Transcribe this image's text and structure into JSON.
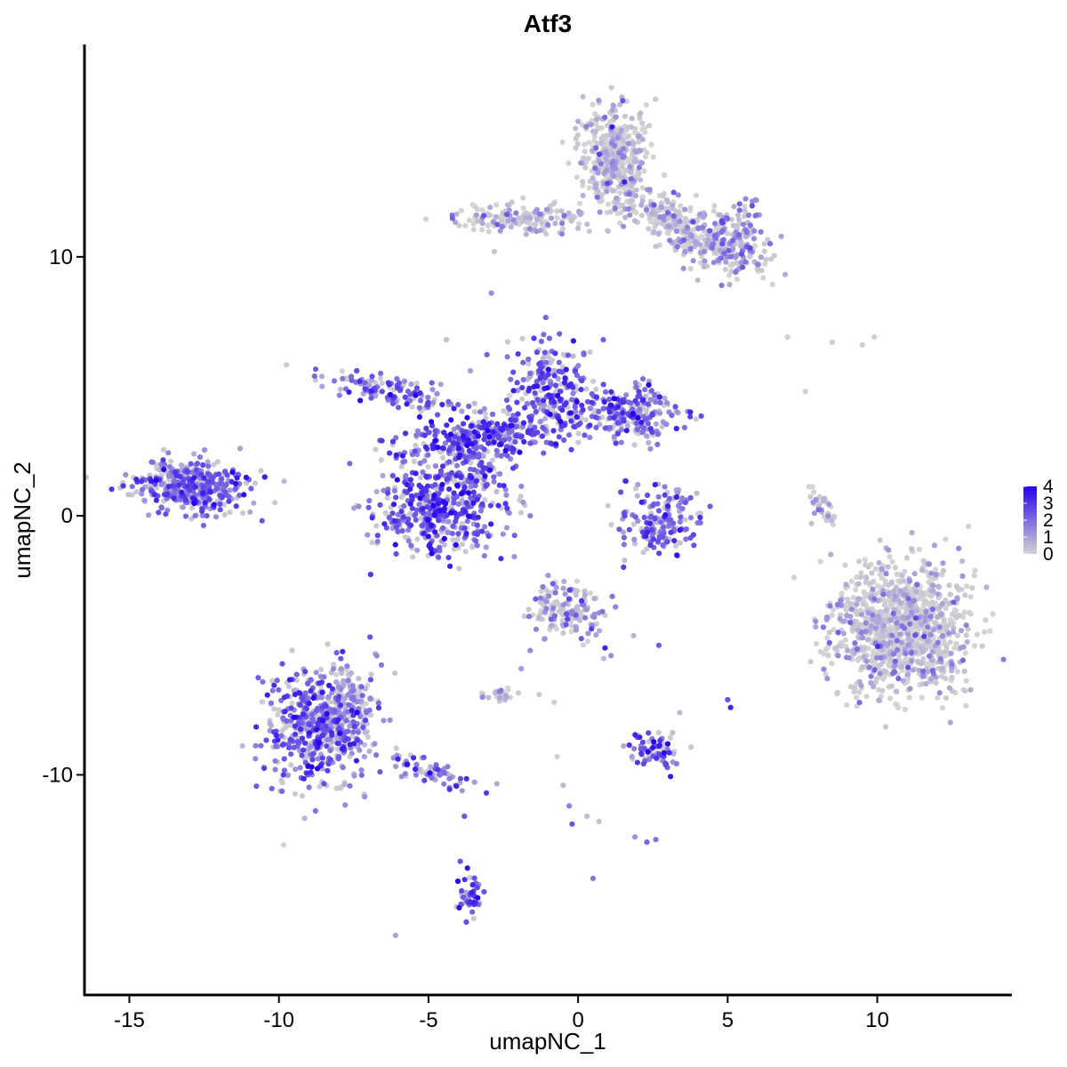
{
  "chart_data": {
    "type": "scatter",
    "title": "Atf3",
    "xlabel": "umapNC_1",
    "ylabel": "umapNC_2",
    "xlim": [
      -16.5,
      14.5
    ],
    "ylim": [
      -18.5,
      18.2
    ],
    "x_ticks": [
      -15,
      -10,
      -5,
      0,
      5,
      10
    ],
    "y_ticks": [
      -10,
      0,
      10
    ],
    "grid": false,
    "color_scale": {
      "name": "",
      "min": 0,
      "max": 4,
      "ticks": [
        4,
        3,
        2,
        1,
        0
      ],
      "low_color": "#d3d3d3",
      "high_color": "#2a00f0",
      "legend_position": "right"
    },
    "points": [
      [
        -13.0,
        1.2,
        2.5
      ],
      [
        -13.5,
        0.8,
        2.0
      ],
      [
        -12.6,
        1.6,
        2.8
      ],
      [
        -14.2,
        0.9,
        1.6
      ],
      [
        -12.2,
        0.4,
        2.2
      ],
      [
        -11.8,
        1.7,
        2.4
      ],
      [
        -13.9,
        1.9,
        1.2
      ],
      [
        -12.8,
        0.0,
        1.8
      ],
      [
        -11.3,
        2.6,
        1.0
      ],
      [
        -11.0,
        1.4,
        2.1
      ],
      [
        -14.5,
        0.6,
        1.2
      ],
      [
        -13.2,
        1.9,
        0.4
      ],
      [
        -9.0,
        -8.5,
        2.6
      ],
      [
        -8.4,
        -7.8,
        2.9
      ],
      [
        -9.6,
        -9.2,
        2.3
      ],
      [
        -8.0,
        -9.3,
        2.2
      ],
      [
        -8.6,
        -6.2,
        1.4
      ],
      [
        -7.6,
        -6.8,
        0.4
      ],
      [
        -7.4,
        -8.6,
        0.8
      ],
      [
        -8.9,
        -10.0,
        1.6
      ],
      [
        -9.3,
        -7.3,
        2.5
      ],
      [
        -6.8,
        -8.8,
        1.3
      ],
      [
        -5.8,
        -9.6,
        1.6
      ],
      [
        -5.0,
        -10.0,
        1.9
      ],
      [
        -4.3,
        -10.5,
        1.8
      ],
      [
        -7.9,
        -6.0,
        0.3
      ],
      [
        -10.1,
        -8.9,
        2.0
      ],
      [
        -3.8,
        -11.6,
        2.4
      ],
      [
        -3.7,
        -13.6,
        3.7
      ],
      [
        -3.5,
        -14.5,
        2.9
      ],
      [
        -3.9,
        -15.0,
        2.2
      ],
      [
        -6.1,
        -16.2,
        0.9
      ],
      [
        -7.4,
        5.6,
        2.6
      ],
      [
        -6.6,
        5.5,
        2.0
      ],
      [
        -5.8,
        5.2,
        1.4
      ],
      [
        -4.7,
        3.9,
        2.4
      ],
      [
        -3.8,
        3.2,
        2.6
      ],
      [
        -3.0,
        2.8,
        3.0
      ],
      [
        -2.3,
        2.6,
        2.7
      ],
      [
        -1.6,
        2.8,
        2.5
      ],
      [
        -1.2,
        5.5,
        3.1
      ],
      [
        -0.6,
        4.8,
        2.8
      ],
      [
        -0.1,
        4.2,
        2.3
      ],
      [
        0.6,
        3.8,
        2.6
      ],
      [
        1.4,
        3.6,
        2.1
      ],
      [
        2.0,
        4.6,
        2.4
      ],
      [
        2.4,
        3.8,
        2.2
      ],
      [
        -4.6,
        1.6,
        2.3
      ],
      [
        -5.4,
        0.8,
        2.5
      ],
      [
        -6.2,
        0.1,
        2.6
      ],
      [
        -5.0,
        -0.3,
        2.7
      ],
      [
        -4.2,
        0.2,
        2.4
      ],
      [
        -3.6,
        1.8,
        2.0
      ],
      [
        -2.4,
        0.8,
        1.4
      ],
      [
        -1.6,
        0.0,
        1.6
      ],
      [
        -4.4,
        6.8,
        0.4
      ],
      [
        -3.6,
        5.6,
        1.0
      ],
      [
        2.9,
        0.8,
        2.8
      ],
      [
        2.5,
        0.4,
        2.4
      ],
      [
        3.2,
        -0.6,
        2.0
      ],
      [
        2.2,
        -0.8,
        2.3
      ],
      [
        3.6,
        -0.9,
        1.8
      ],
      [
        2.0,
        -0.2,
        1.3
      ],
      [
        1.0,
        14.2,
        0.1
      ],
      [
        1.8,
        13.4,
        0.2
      ],
      [
        0.8,
        12.4,
        0.1
      ],
      [
        1.6,
        12.8,
        0.5
      ],
      [
        0.6,
        13.6,
        0.1
      ],
      [
        1.2,
        15.0,
        0.1
      ],
      [
        2.4,
        12.5,
        0.3
      ],
      [
        3.0,
        12.1,
        0.4
      ],
      [
        3.6,
        11.3,
        0.2
      ],
      [
        4.2,
        11.7,
        0.5
      ],
      [
        4.9,
        11.5,
        1.1
      ],
      [
        5.4,
        11.8,
        2.0
      ],
      [
        5.0,
        10.0,
        1.5
      ],
      [
        5.5,
        9.6,
        2.4
      ],
      [
        6.0,
        9.7,
        1.6
      ],
      [
        4.8,
        8.9,
        1.8
      ],
      [
        4.0,
        9.1,
        0.4
      ],
      [
        2.6,
        10.4,
        0.3
      ],
      [
        3.9,
        10.4,
        0.6
      ],
      [
        -3.0,
        11.6,
        0.3
      ],
      [
        -2.0,
        11.5,
        0.4
      ],
      [
        -1.0,
        11.2,
        0.4
      ],
      [
        0.0,
        11.1,
        0.5
      ],
      [
        -2.6,
        11.0,
        1.2
      ],
      [
        -3.2,
        11.3,
        0.8
      ],
      [
        -2.8,
        10.2,
        0.3
      ],
      [
        -2.9,
        8.6,
        1.3
      ],
      [
        7.0,
        6.9,
        0.1
      ],
      [
        8.5,
        6.7,
        0.1
      ],
      [
        9.5,
        6.6,
        0.1
      ],
      [
        9.9,
        6.9,
        0.1
      ],
      [
        7.6,
        4.8,
        0.1
      ],
      [
        10.6,
        -3.6,
        0.1
      ],
      [
        11.2,
        -3.0,
        0.1
      ],
      [
        10.0,
        -4.4,
        0.1
      ],
      [
        9.8,
        -5.6,
        0.2
      ],
      [
        11.0,
        -5.0,
        0.1
      ],
      [
        12.0,
        -4.2,
        0.1
      ],
      [
        10.4,
        -6.6,
        0.2
      ],
      [
        9.4,
        -6.8,
        0.1
      ],
      [
        12.4,
        -3.4,
        0.1
      ],
      [
        10.6,
        -2.0,
        0.1
      ],
      [
        11.6,
        -6.2,
        0.1
      ],
      [
        8.2,
        -4.3,
        1.8
      ],
      [
        8.4,
        -4.9,
        2.2
      ],
      [
        9.0,
        -5.2,
        0.8
      ],
      [
        8.2,
        0.6,
        0.6
      ],
      [
        7.9,
        0.1,
        1.2
      ],
      [
        7.8,
        -0.3,
        0.4
      ],
      [
        -1.0,
        -3.1,
        0.2
      ],
      [
        -0.5,
        -3.6,
        0.3
      ],
      [
        -0.9,
        -4.0,
        2.2
      ],
      [
        -0.4,
        -4.2,
        2.4
      ],
      [
        0.2,
        -3.2,
        0.4
      ],
      [
        0.6,
        -4.6,
        1.0
      ],
      [
        0.9,
        -5.1,
        3.4
      ],
      [
        1.1,
        -5.4,
        1.3
      ],
      [
        -1.6,
        -5.2,
        1.4
      ],
      [
        -1.9,
        -5.9,
        1.1
      ],
      [
        -2.6,
        -6.8,
        0.5
      ],
      [
        -2.4,
        -7.0,
        0.8
      ],
      [
        -1.3,
        -6.9,
        0.2
      ],
      [
        -0.8,
        -7.2,
        0.1
      ],
      [
        2.7,
        -5.0,
        2.3
      ],
      [
        2.1,
        -9.0,
        2.4
      ],
      [
        2.7,
        -9.2,
        2.6
      ],
      [
        2.8,
        -8.6,
        1.7
      ],
      [
        1.8,
        -9.3,
        1.0
      ],
      [
        3.4,
        -7.6,
        0.5
      ],
      [
        5.1,
        -7.4,
        3.4
      ],
      [
        5.0,
        -7.1,
        2.5
      ],
      [
        -0.7,
        -9.3,
        0.1
      ],
      [
        -0.5,
        -10.4,
        0.5
      ],
      [
        -0.3,
        -11.2,
        1.6
      ],
      [
        -0.2,
        -11.9,
        2.4
      ],
      [
        0.3,
        -11.6,
        0.4
      ],
      [
        0.7,
        -11.8,
        0.4
      ],
      [
        1.9,
        -12.4,
        1.3
      ],
      [
        2.3,
        -12.6,
        2.1
      ],
      [
        2.6,
        -12.5,
        1.9
      ],
      [
        0.5,
        -14.0,
        1.8
      ]
    ],
    "clusters": [
      {
        "name": "",
        "cx": -12.9,
        "cy": 1.1,
        "sx": 0.95,
        "sy": 0.5,
        "rot": -0.05,
        "n": 380,
        "expr": 2.1
      },
      {
        "name": "",
        "cx": -8.7,
        "cy": -8.2,
        "sx": 0.9,
        "sy": 1.15,
        "rot": 0.0,
        "n": 500,
        "expr": 2.1
      },
      {
        "name": "",
        "cx": -7.7,
        "cy": -7.2,
        "sx": 0.5,
        "sy": 0.8,
        "rot": 0.0,
        "n": 130,
        "expr": 0.45
      },
      {
        "name": "",
        "cx": -4.9,
        "cy": -9.9,
        "sx": 0.85,
        "sy": 0.22,
        "rot": -0.35,
        "n": 60,
        "expr": 1.5
      },
      {
        "name": "",
        "cx": -6.2,
        "cy": 4.8,
        "sx": 1.2,
        "sy": 0.25,
        "rot": -0.25,
        "n": 120,
        "expr": 2.0
      },
      {
        "name": "",
        "cx": -3.2,
        "cy": 3.1,
        "sx": 1.5,
        "sy": 0.4,
        "rot": 0.15,
        "n": 320,
        "expr": 2.3
      },
      {
        "name": "",
        "cx": -0.8,
        "cy": 5.0,
        "sx": 0.7,
        "sy": 0.9,
        "rot": 0.3,
        "n": 200,
        "expr": 2.4
      },
      {
        "name": "",
        "cx": 1.8,
        "cy": 4.0,
        "sx": 0.8,
        "sy": 0.55,
        "rot": -0.1,
        "n": 220,
        "expr": 2.1
      },
      {
        "name": "",
        "cx": -4.7,
        "cy": 0.3,
        "sx": 1.1,
        "sy": 0.9,
        "rot": 0.0,
        "n": 420,
        "expr": 2.3
      },
      {
        "name": "",
        "cx": -3.5,
        "cy": 1.8,
        "sx": 0.5,
        "sy": 0.6,
        "rot": 0.0,
        "n": 100,
        "expr": 1.9
      },
      {
        "name": "",
        "cx": 2.7,
        "cy": -0.1,
        "sx": 0.6,
        "sy": 0.7,
        "rot": 0.0,
        "n": 160,
        "expr": 2.0
      },
      {
        "name": "",
        "cx": 1.2,
        "cy": 13.8,
        "sx": 0.6,
        "sy": 0.95,
        "rot": 0.0,
        "n": 420,
        "expr": 0.12
      },
      {
        "name": "",
        "cx": 3.6,
        "cy": 11.0,
        "sx": 1.3,
        "sy": 0.45,
        "rot": -0.5,
        "n": 320,
        "expr": 0.25
      },
      {
        "name": "",
        "cx": 5.3,
        "cy": 10.7,
        "sx": 0.55,
        "sy": 0.7,
        "rot": 0.0,
        "n": 120,
        "expr": 1.2
      },
      {
        "name": "",
        "cx": -1.8,
        "cy": 11.5,
        "sx": 1.3,
        "sy": 0.3,
        "rot": 0.0,
        "n": 140,
        "expr": 0.35
      },
      {
        "name": "",
        "cx": 10.8,
        "cy": -4.4,
        "sx": 1.1,
        "sy": 1.2,
        "rot": 0.0,
        "n": 1100,
        "expr": 0.1
      },
      {
        "name": "",
        "cx": -0.4,
        "cy": -3.7,
        "sx": 0.6,
        "sy": 0.6,
        "rot": 0.0,
        "n": 140,
        "expr": 0.9
      },
      {
        "name": "",
        "cx": 2.5,
        "cy": -9.1,
        "sx": 0.45,
        "sy": 0.35,
        "rot": 0.0,
        "n": 70,
        "expr": 2.2
      },
      {
        "name": "",
        "cx": -2.6,
        "cy": -6.9,
        "sx": 0.3,
        "sy": 0.15,
        "rot": 0.0,
        "n": 25,
        "expr": 0.5
      },
      {
        "name": "",
        "cx": -3.6,
        "cy": -14.7,
        "sx": 0.2,
        "sy": 0.4,
        "rot": 0.0,
        "n": 50,
        "expr": 2.6
      },
      {
        "name": "",
        "cx": 8.1,
        "cy": 0.4,
        "sx": 0.15,
        "sy": 0.4,
        "rot": 0.4,
        "n": 30,
        "expr": 0.5
      }
    ]
  }
}
